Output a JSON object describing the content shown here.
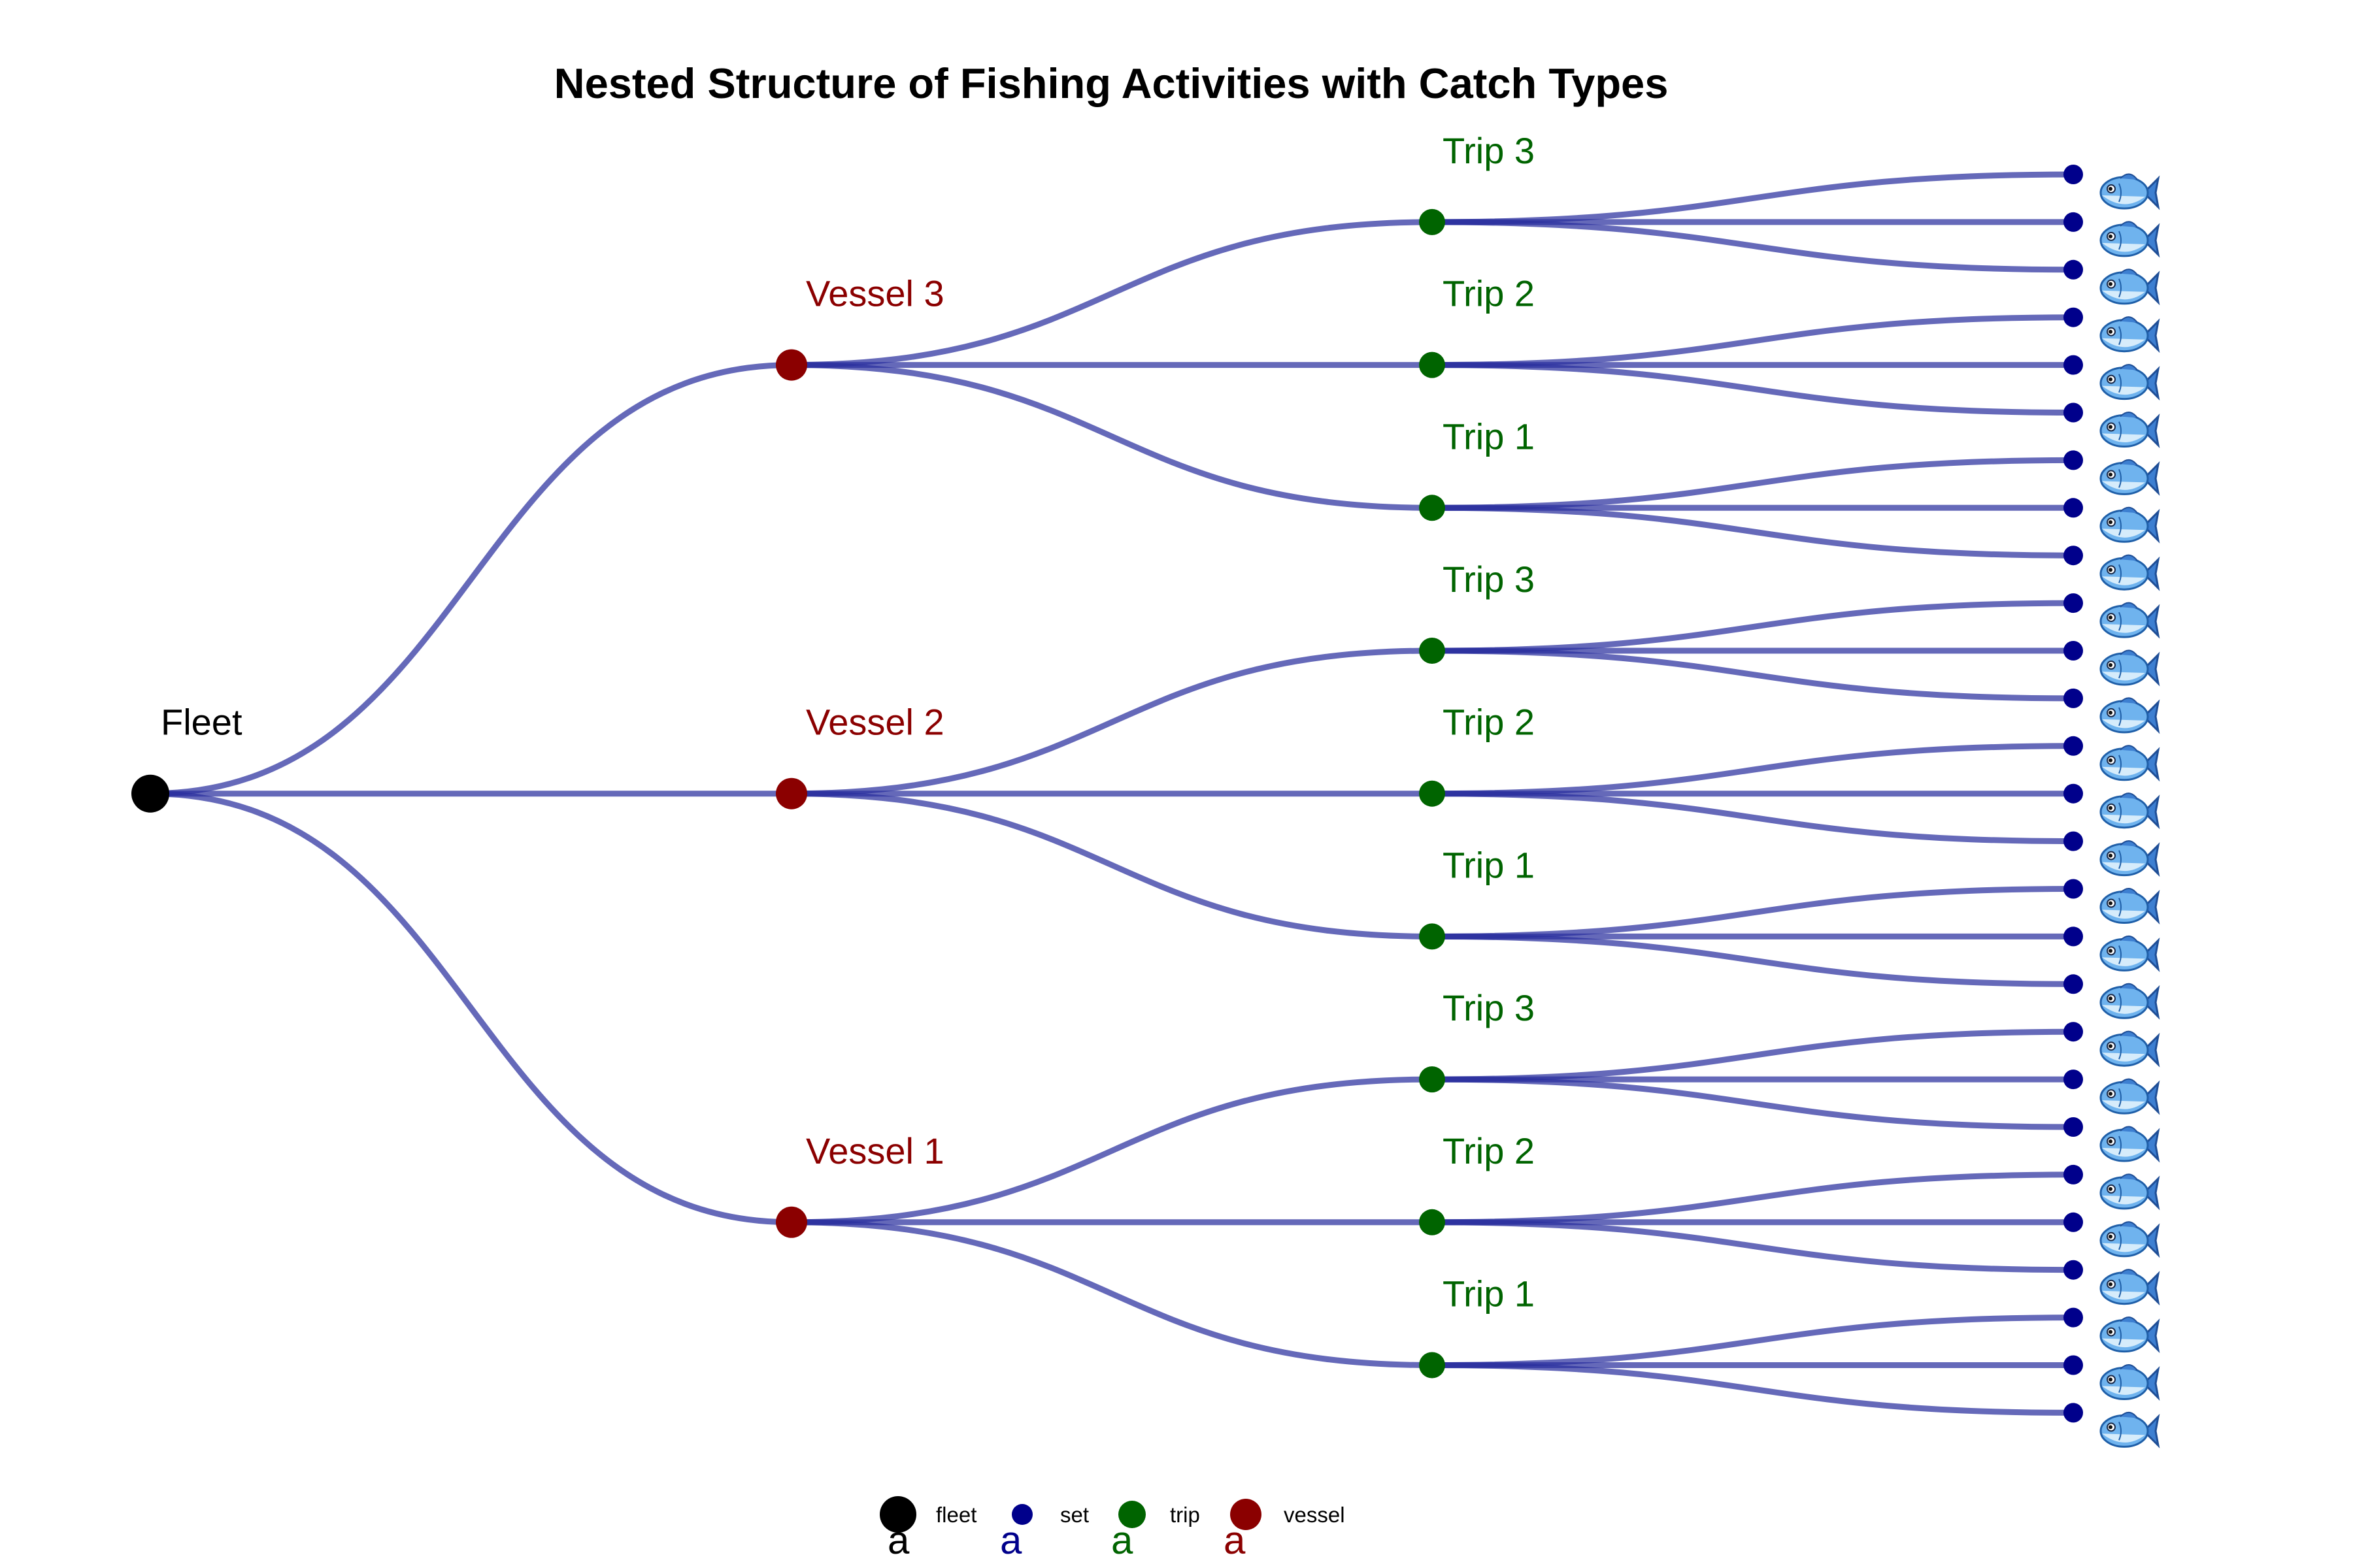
{
  "title": "Nested Structure of Fishing Activities with Catch Types",
  "colors": {
    "fleet": "#000000",
    "vessel": "#8b0000",
    "trip": "#006400",
    "set": "#00008b",
    "edge": "#2a2f9e"
  },
  "root": {
    "label": "Fleet",
    "type": "fleet"
  },
  "vessels": [
    {
      "label": "Vessel 1",
      "trips": [
        {
          "label": "Trip 1",
          "sets": [
            "fish-icon",
            "fish-icon",
            "fish-icon"
          ]
        },
        {
          "label": "Trip 2",
          "sets": [
            "fish-icon",
            "fish-icon",
            "fish-icon"
          ]
        },
        {
          "label": "Trip 3",
          "sets": [
            "fish-icon",
            "fish-icon",
            "fish-icon"
          ]
        }
      ]
    },
    {
      "label": "Vessel 2",
      "trips": [
        {
          "label": "Trip 1",
          "sets": [
            "fish-icon",
            "fish-icon",
            "fish-icon"
          ]
        },
        {
          "label": "Trip 2",
          "sets": [
            "fish-icon",
            "fish-icon",
            "fish-icon"
          ]
        },
        {
          "label": "Trip 3",
          "sets": [
            "fish-icon",
            "fish-icon",
            "fish-icon"
          ]
        }
      ]
    },
    {
      "label": "Vessel 3",
      "trips": [
        {
          "label": "Trip 1",
          "sets": [
            "fish-icon",
            "fish-icon",
            "fish-icon"
          ]
        },
        {
          "label": "Trip 2",
          "sets": [
            "fish-icon",
            "fish-icon",
            "fish-icon"
          ]
        },
        {
          "label": "Trip 3",
          "sets": [
            "fish-icon",
            "fish-icon",
            "fish-icon"
          ]
        }
      ]
    }
  ],
  "legend": {
    "items": [
      {
        "label": "fleet",
        "key": "a",
        "color": "#000000"
      },
      {
        "label": "set",
        "key": "a",
        "color": "#00008b"
      },
      {
        "label": "trip",
        "key": "a",
        "color": "#006400"
      },
      {
        "label": "vessel",
        "key": "a",
        "color": "#8b0000"
      }
    ]
  }
}
